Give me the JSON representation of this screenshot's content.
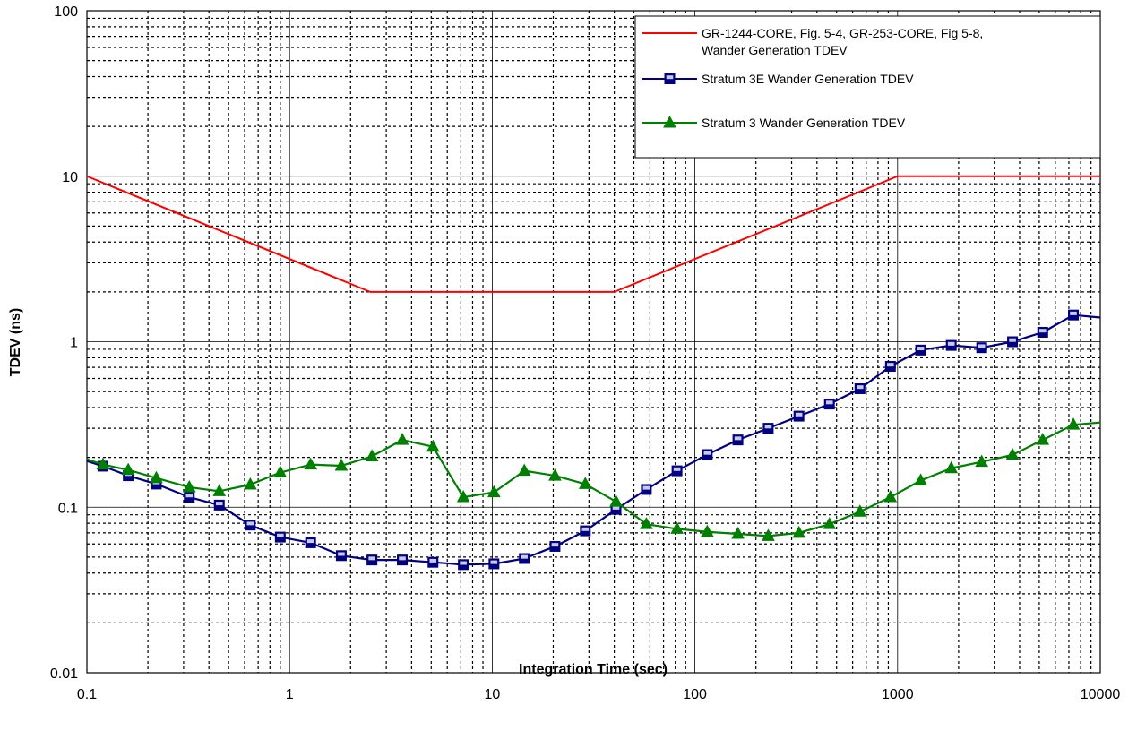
{
  "chart_data": {
    "type": "line",
    "title": "",
    "xlabel": "Integration Time (sec)",
    "ylabel": "TDEV (ns)",
    "x_scale": "log",
    "y_scale": "log",
    "xlim": [
      0.1,
      10000
    ],
    "ylim": [
      0.01,
      100
    ],
    "grid": true,
    "legend_position": "top-right",
    "x_tick_labels": [
      "0.1",
      "1",
      "10",
      "100",
      "1000",
      "10000"
    ],
    "y_tick_labels": [
      "0.01",
      "0.1",
      "1",
      "10",
      "100"
    ],
    "series": [
      {
        "name": "GR-1244-CORE, Fig. 5-4, GR-253-CORE, Fig 5-8, Wander Generation TDEV",
        "legend_lines": [
          "GR-1244-CORE, Fig. 5-4, GR-253-CORE, Fig 5-8,",
          "Wander Generation TDEV"
        ],
        "color": "#FF0000",
        "marker": "none",
        "x": [
          0.1,
          2.5,
          40,
          1000,
          10000
        ],
        "y": [
          10,
          2,
          2,
          10,
          10
        ]
      },
      {
        "name": "Stratum 3E Wander Generation TDEV",
        "legend_lines": [
          "Stratum 3E Wander Generation TDEV"
        ],
        "color": "#000080",
        "marker": "square",
        "x": [
          0.1,
          0.12,
          0.16,
          0.22,
          0.32,
          0.45,
          0.64,
          0.9,
          1.27,
          1.8,
          2.55,
          3.6,
          5.1,
          7.2,
          10.2,
          14.4,
          20.4,
          28.8,
          40.8,
          57.6,
          81.6,
          115,
          163,
          230,
          326,
          461,
          652,
          922,
          1300,
          1840,
          2600,
          3690,
          5200,
          7370,
          10000
        ],
        "y": [
          0.19,
          0.177,
          0.155,
          0.138,
          0.115,
          0.103,
          0.078,
          0.066,
          0.061,
          0.051,
          0.048,
          0.048,
          0.0465,
          0.045,
          0.0455,
          0.049,
          0.058,
          0.072,
          0.097,
          0.128,
          0.166,
          0.208,
          0.255,
          0.3,
          0.355,
          0.42,
          0.52,
          0.71,
          0.89,
          0.95,
          0.92,
          1.0,
          1.14,
          1.45,
          1.4
        ]
      },
      {
        "name": "Stratum 3 Wander Generation TDEV",
        "legend_lines": [
          "Stratum 3 Wander Generation TDEV"
        ],
        "color": "#008000",
        "marker": "triangle",
        "x": [
          0.1,
          0.12,
          0.16,
          0.22,
          0.32,
          0.45,
          0.64,
          0.9,
          1.27,
          1.8,
          2.55,
          3.6,
          5.1,
          7.2,
          10.2,
          14.4,
          20.4,
          28.8,
          40.8,
          57.6,
          81.6,
          115,
          163,
          230,
          326,
          461,
          652,
          922,
          1300,
          1840,
          2600,
          3690,
          5200,
          7370,
          10000
        ],
        "y": [
          0.195,
          0.181,
          0.168,
          0.15,
          0.132,
          0.125,
          0.137,
          0.162,
          0.181,
          0.178,
          0.203,
          0.255,
          0.232,
          0.115,
          0.123,
          0.166,
          0.155,
          0.138,
          0.108,
          0.079,
          0.074,
          0.071,
          0.069,
          0.067,
          0.07,
          0.079,
          0.094,
          0.115,
          0.145,
          0.172,
          0.188,
          0.207,
          0.255,
          0.315,
          0.325
        ]
      }
    ]
  }
}
